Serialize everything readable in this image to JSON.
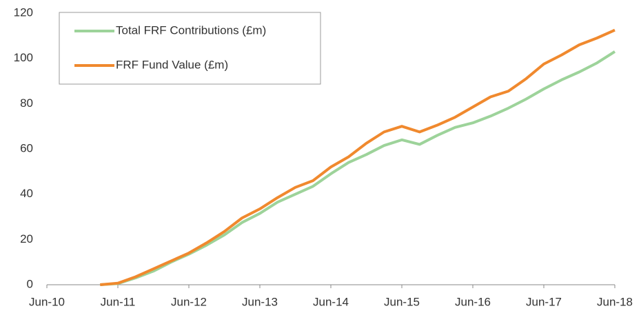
{
  "chart_data": {
    "type": "line",
    "categories": [
      "Jun-10",
      null,
      null,
      null,
      "Jun-11",
      null,
      null,
      null,
      "Jun-12",
      null,
      null,
      null,
      "Jun-13",
      null,
      null,
      null,
      "Jun-14",
      null,
      null,
      null,
      "Jun-15",
      null,
      null,
      null,
      "Jun-16",
      null,
      null,
      null,
      "Jun-17",
      null,
      null,
      null,
      "Jun-18"
    ],
    "series": [
      {
        "name": "Total FRF Contributions (£m)",
        "color": "#9dd39a",
        "values": [
          null,
          null,
          null,
          0,
          0.5,
          3,
          6,
          10,
          13.5,
          17.5,
          22,
          27.5,
          31.5,
          36.5,
          40,
          43.5,
          49,
          54,
          57.5,
          61.5,
          64,
          62,
          66,
          69.5,
          71.5,
          74.5,
          78,
          82,
          86.5,
          90.5,
          94,
          98,
          103
        ]
      },
      {
        "name": "FRF Fund Value (£m)",
        "color": "#f0892e",
        "values": [
          null,
          null,
          null,
          0,
          0.7,
          3.5,
          7,
          10.5,
          14,
          18.5,
          23.5,
          29.5,
          33.5,
          38.5,
          43,
          46,
          52,
          56.5,
          62.5,
          67.5,
          70,
          67.5,
          70.5,
          74,
          78.5,
          83,
          85.5,
          91,
          97.5,
          101.5,
          106,
          109,
          112.5
        ]
      }
    ],
    "ylim": [
      0,
      120
    ],
    "yticks": [
      0,
      20,
      40,
      60,
      80,
      100,
      120
    ],
    "grid": false,
    "legend": "upper left"
  }
}
